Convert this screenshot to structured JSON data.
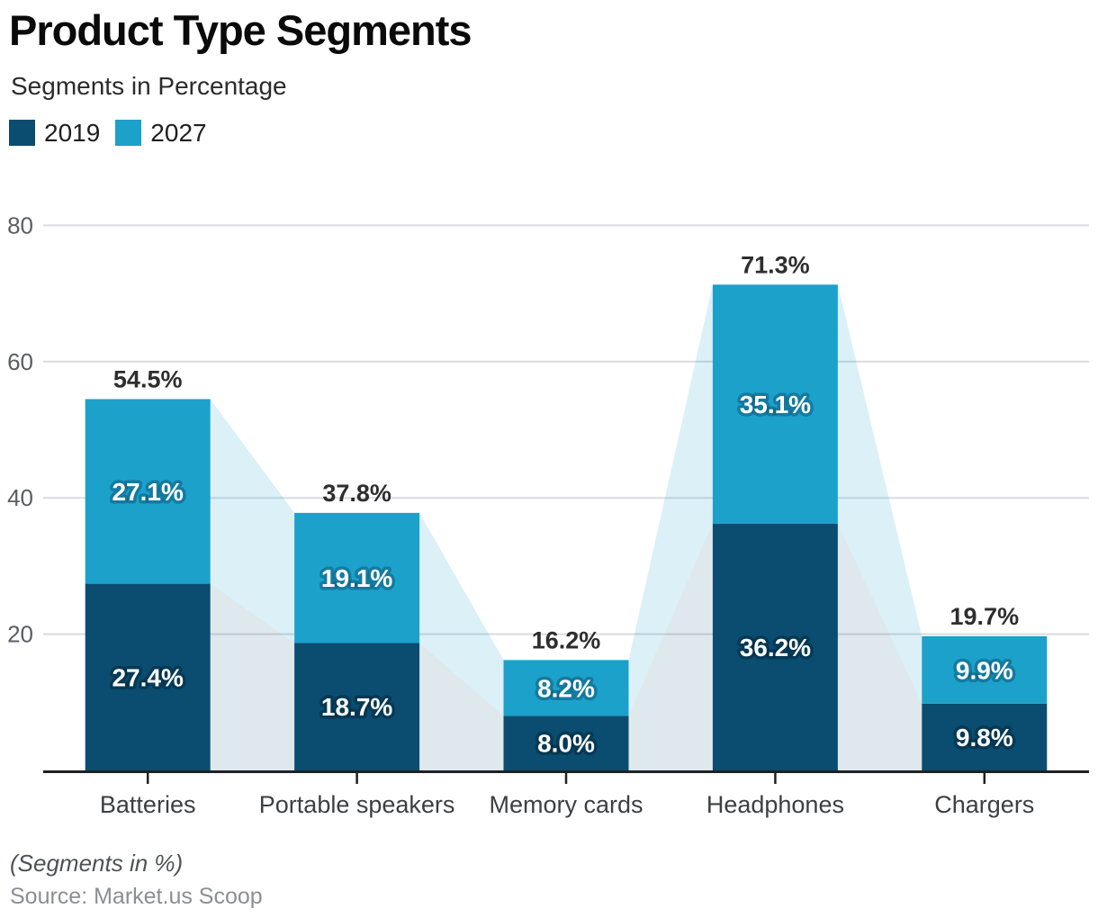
{
  "header": {
    "title": "Product Type Segments",
    "subtitle": "Segments in Percentage"
  },
  "legend": [
    {
      "label": "2019",
      "color": "#0A4D70"
    },
    {
      "label": "2027",
      "color": "#1CA1CB"
    }
  ],
  "colors": {
    "series_2019": "#0A4D70",
    "series_2027": "#1CA1CB",
    "flow_2027_tint": "#DCEEF8",
    "flow_2019_tint": "#DDE4EA",
    "gridline": "#D9DCE0",
    "axis": "#1F2124"
  },
  "chart_data": {
    "type": "bar",
    "stacked": true,
    "title": "Product Type Segments",
    "subtitle": "Segments in Percentage",
    "categories": [
      "Batteries",
      "Portable speakers",
      "Memory cards",
      "Headphones",
      "Chargers"
    ],
    "series": [
      {
        "name": "2019",
        "color": "#0A4D70",
        "values": [
          27.4,
          18.7,
          8.0,
          36.2,
          9.8
        ]
      },
      {
        "name": "2027",
        "color": "#1CA1CB",
        "values": [
          27.1,
          19.1,
          8.2,
          35.1,
          9.9
        ]
      }
    ],
    "totals": [
      54.5,
      37.8,
      16.2,
      71.3,
      19.7
    ],
    "value_label_suffix": "%",
    "yticks": [
      20,
      40,
      60,
      80
    ],
    "ylim": [
      0,
      80
    ],
    "grid": true,
    "legend_position": "top-left",
    "flow_connectors": true
  },
  "footer": {
    "note": "(Segments in %)",
    "source": "Source: Market.us Scoop"
  }
}
